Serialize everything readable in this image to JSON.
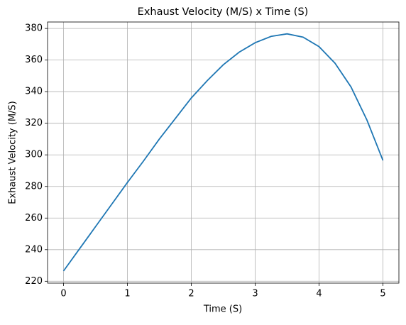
{
  "chart_data": {
    "type": "line",
    "title": "Exhaust Velocity (M/S) x Time (S)",
    "xlabel": "Time (S)",
    "ylabel": "Exhaust Velocity (M/S)",
    "x": [
      0,
      0.25,
      0.5,
      0.75,
      1,
      1.25,
      1.5,
      1.75,
      2,
      2.25,
      2.5,
      2.75,
      3,
      3.25,
      3.5,
      3.75,
      4,
      4.25,
      4.5,
      4.75,
      5
    ],
    "series": [
      {
        "color": "#1f77b4",
        "values": [
          226.5,
          240.5,
          254.5,
          268.5,
          282.5,
          296,
          310,
          323,
          336,
          347,
          357,
          365,
          371,
          375,
          376.6,
          374.5,
          368.5,
          358,
          343,
          322,
          296.5
        ]
      }
    ],
    "xlim": [
      -0.25,
      5.25
    ],
    "xticks": [
      0,
      1,
      2,
      3,
      4,
      5
    ],
    "ylim": [
      218.8,
      384.1
    ],
    "yticks": [
      220,
      240,
      260,
      280,
      300,
      320,
      340,
      360,
      380
    ],
    "grid": true
  }
}
